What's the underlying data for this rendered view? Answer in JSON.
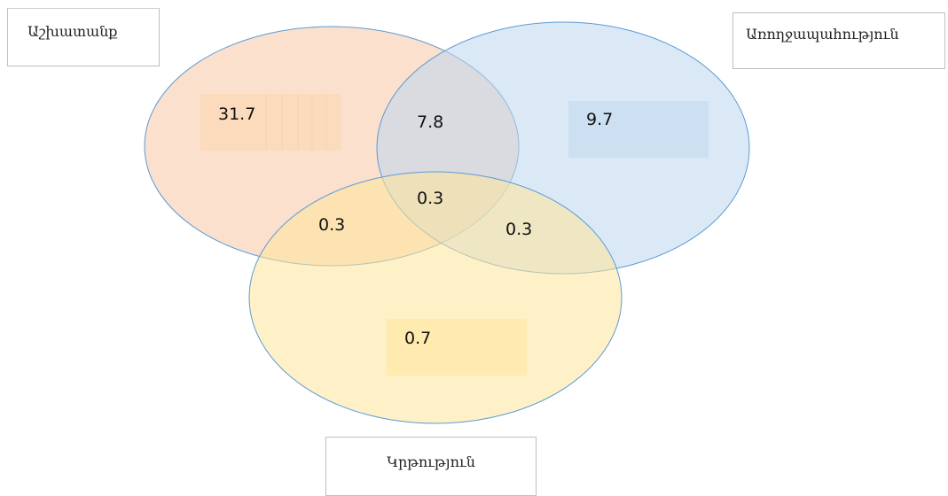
{
  "sets": {
    "work": "Աշխատանք",
    "health": "Առողջապահություն",
    "education": "Կրթություն"
  },
  "values": {
    "work_only": "31.7",
    "work_health": "7.8",
    "health_only": "9.7",
    "all_three": "0.3",
    "work_education": "0.3",
    "health_education": "0.3",
    "education_only": "0.7"
  },
  "colors": {
    "work": "#f8cbad",
    "health": "#bdd7ee",
    "education": "#ffe699",
    "outline": "#5b9bd5"
  }
}
